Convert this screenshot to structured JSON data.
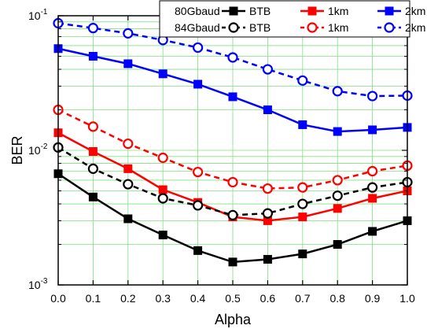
{
  "chart_data": {
    "type": "line",
    "xlabel": "Alpha",
    "ylabel": "BER",
    "x": [
      0.0,
      0.1,
      0.2,
      0.3,
      0.4,
      0.5,
      0.6,
      0.7,
      0.8,
      0.9,
      1.0
    ],
    "x_ticks": [
      "0.0",
      "0.1",
      "0.2",
      "0.3",
      "0.4",
      "0.5",
      "0.6",
      "0.7",
      "0.8",
      "0.9",
      "1.0"
    ],
    "xlim": [
      0.0,
      1.0
    ],
    "ylim": [
      0.001,
      0.1
    ],
    "y_scale": "log",
    "y_ticks": [
      {
        "base": "10",
        "exp": "-3"
      },
      {
        "base": "10",
        "exp": "-2"
      },
      {
        "base": "10",
        "exp": "-1"
      }
    ],
    "grid": true,
    "grid_color": "#7fe07f",
    "legend_position": "top-right",
    "legend_groups": [
      "80Gbaud",
      "84Gbaud"
    ],
    "series": [
      {
        "name": "BTB",
        "group": "80Gbaud",
        "color": "#000000",
        "marker": "square-filled",
        "dash": "solid",
        "values": [
          0.0067,
          0.0045,
          0.0031,
          0.00235,
          0.0018,
          0.00148,
          0.00155,
          0.0017,
          0.002,
          0.0025,
          0.003
        ]
      },
      {
        "name": "1km",
        "group": "80Gbaud",
        "color": "#ff0000",
        "marker": "square-filled",
        "dash": "solid",
        "values": [
          0.0135,
          0.0098,
          0.0073,
          0.0051,
          0.0041,
          0.0032,
          0.003,
          0.0032,
          0.0037,
          0.0044,
          0.005
        ]
      },
      {
        "name": "2km",
        "group": "80Gbaud",
        "color": "#0000ff",
        "marker": "square-filled",
        "dash": "solid",
        "values": [
          0.057,
          0.05,
          0.044,
          0.037,
          0.031,
          0.025,
          0.02,
          0.0155,
          0.0138,
          0.0142,
          0.0148
        ]
      },
      {
        "name": "BTB",
        "group": "84Gbaud",
        "color": "#000000",
        "marker": "circle-open",
        "dash": "dashed",
        "values": [
          0.0105,
          0.0073,
          0.0056,
          0.0044,
          0.0039,
          0.0033,
          0.0034,
          0.004,
          0.0046,
          0.0053,
          0.0058
        ]
      },
      {
        "name": "1km",
        "group": "84Gbaud",
        "color": "#ff0000",
        "marker": "circle-open",
        "dash": "dashed",
        "values": [
          0.02,
          0.015,
          0.0112,
          0.0088,
          0.0069,
          0.0058,
          0.0052,
          0.0053,
          0.006,
          0.007,
          0.0077
        ]
      },
      {
        "name": "2km",
        "group": "84Gbaud",
        "color": "#0000ff",
        "marker": "circle-open",
        "dash": "dashed",
        "values": [
          0.088,
          0.081,
          0.074,
          0.066,
          0.058,
          0.049,
          0.04,
          0.033,
          0.0275,
          0.0253,
          0.0255
        ]
      }
    ]
  }
}
